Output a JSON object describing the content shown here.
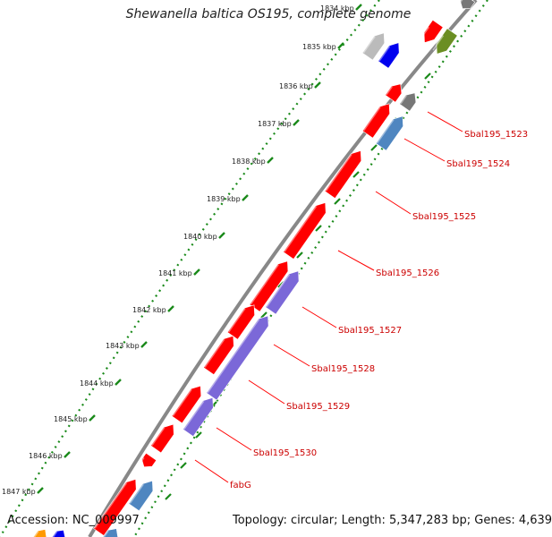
{
  "title": "Shewanella baltica OS195, complete genome",
  "accession": "Accession: NC_009997",
  "topology": "Topology: circular; Length: 5,347,283 bp; Genes: 4,639",
  "colors": {
    "backbone": "#888888",
    "tick": "#1a8a1a",
    "gene_red": "#ff0000",
    "gene_blue": "#4f86c0",
    "gene_purple": "#7b68d8",
    "gene_gray": "#777777",
    "gene_lightgray": "#bbbbbb",
    "gene_olive": "#6b8e23",
    "gene_darkblue": "#0000ee",
    "gene_orange": "#ff9900",
    "label_line": "#ff0000"
  },
  "kbp_labels": [
    "1834 kbp",
    "1835 kbp",
    "1836 kbp",
    "1837 kbp",
    "1838 kbp",
    "1839 kbp",
    "1840 kbp",
    "1841 kbp",
    "1842 kbp",
    "1843 kbp",
    "1844 kbp",
    "1845 kbp",
    "1846 kbp",
    "1847 kbp"
  ],
  "gene_labels": [
    "Sbal195_1523",
    "Sbal195_1524",
    "Sbal195_1525",
    "Sbal195_1526",
    "Sbal195_1527",
    "Sbal195_1528",
    "Sbal195_1529",
    "Sbal195_1530",
    "fabG"
  ]
}
